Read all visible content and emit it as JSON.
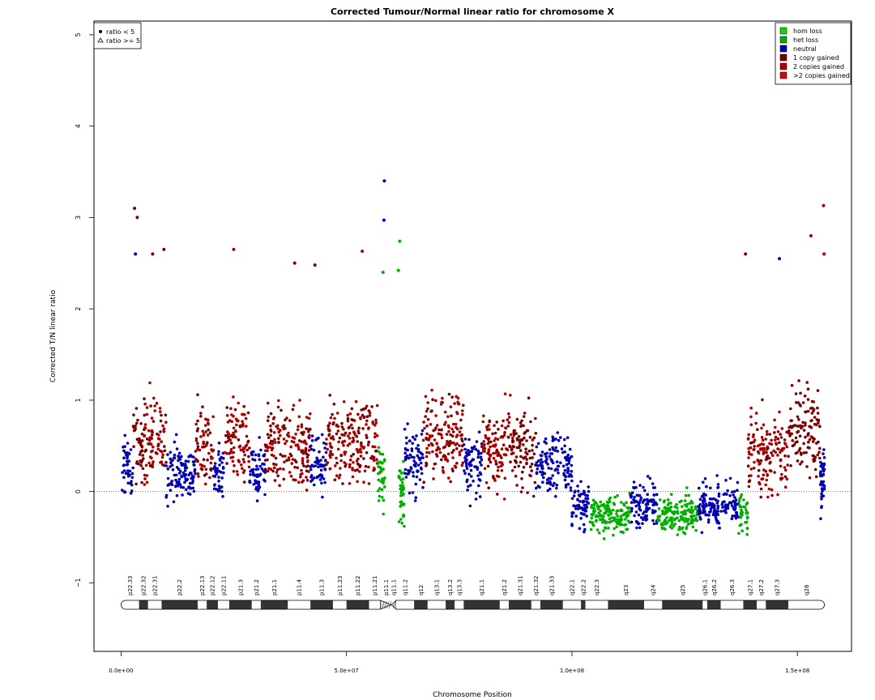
{
  "chart_data": {
    "type": "scatter",
    "title": "Corrected Tumour/Normal linear ratio for chromosome  X",
    "xlabel": "Chromosome Position",
    "ylabel": "Corrected T/N linear ratio",
    "xlim": [
      -6000000,
      162000000
    ],
    "ylim": [
      -1.75,
      5.15
    ],
    "x_ticks": [
      0,
      50000000,
      100000000,
      150000000
    ],
    "x_tick_labels": [
      "0.0e+00",
      "5.0e+07",
      "1.0e+08",
      "1.5e+08"
    ],
    "y_ticks": [
      -1,
      0,
      1,
      2,
      3,
      4,
      5
    ],
    "y_tick_labels": [
      "−1",
      "0",
      "1",
      "2",
      "3",
      "4",
      "5"
    ],
    "reference_line_y": 0,
    "legend_state": {
      "position": "top-right",
      "items": [
        {
          "label": "hom loss",
          "color": "#00e000"
        },
        {
          "label": "het loss",
          "color": "#00b000"
        },
        {
          "label": "neutral",
          "color": "#0000b0"
        },
        {
          "label": "1 copy gained",
          "color": "#7a0000"
        },
        {
          "label": "2 copies gained",
          "color": "#aa0000"
        },
        {
          "label": ">2 copies gained",
          "color": "#e00000"
        }
      ]
    },
    "legend_shape": {
      "position": "top-left",
      "items": [
        {
          "label": "ratio < 5",
          "shape": "dot"
        },
        {
          "label": "ratio >= 5",
          "shape": "triangle"
        }
      ]
    },
    "series_colors": {
      "neutral": "#0000b0",
      "gain1": "#7a0000",
      "gain2": "#aa0000",
      "loss": "#00b000"
    },
    "segments": [
      {
        "start": 0,
        "end": 2700000,
        "state": "neutral",
        "center": 0.25,
        "spread": 0.55
      },
      {
        "start": 2700000,
        "end": 5200000,
        "state": "gain1",
        "center": 0.55,
        "spread": 0.7
      },
      {
        "start": 5200000,
        "end": 10000000,
        "state": "gain2",
        "center": 0.55,
        "spread": 0.75
      },
      {
        "start": 10000000,
        "end": 16500000,
        "state": "neutral",
        "center": 0.2,
        "spread": 0.55
      },
      {
        "start": 16500000,
        "end": 20500000,
        "state": "gain2",
        "center": 0.5,
        "spread": 0.75
      },
      {
        "start": 20500000,
        "end": 23000000,
        "state": "neutral",
        "center": 0.2,
        "spread": 0.5
      },
      {
        "start": 23000000,
        "end": 28500000,
        "state": "gain2",
        "center": 0.5,
        "spread": 0.75
      },
      {
        "start": 28500000,
        "end": 32000000,
        "state": "neutral",
        "center": 0.2,
        "spread": 0.5
      },
      {
        "start": 32000000,
        "end": 42000000,
        "state": "gain2",
        "center": 0.5,
        "spread": 0.75
      },
      {
        "start": 42000000,
        "end": 45500000,
        "state": "neutral",
        "center": 0.3,
        "spread": 0.5
      },
      {
        "start": 45500000,
        "end": 57000000,
        "state": "gain2",
        "center": 0.55,
        "spread": 0.8
      },
      {
        "start": 57000000,
        "end": 58500000,
        "state": "loss",
        "center": 0.2,
        "spread": 0.6
      },
      {
        "start": 61500000,
        "end": 62800000,
        "state": "loss",
        "center": 0.0,
        "spread": 0.6
      },
      {
        "start": 62800000,
        "end": 67000000,
        "state": "neutral",
        "center": 0.35,
        "spread": 0.6
      },
      {
        "start": 67000000,
        "end": 76000000,
        "state": "gain2",
        "center": 0.65,
        "spread": 0.8
      },
      {
        "start": 76000000,
        "end": 80000000,
        "state": "neutral",
        "center": 0.3,
        "spread": 0.55
      },
      {
        "start": 80000000,
        "end": 87000000,
        "state": "gain2",
        "center": 0.45,
        "spread": 0.7
      },
      {
        "start": 87000000,
        "end": 92000000,
        "state": "gain1",
        "center": 0.45,
        "spread": 0.7
      },
      {
        "start": 92000000,
        "end": 100000000,
        "state": "neutral",
        "center": 0.3,
        "spread": 0.6
      },
      {
        "start": 100000000,
        "end": 104000000,
        "state": "neutral",
        "center": -0.15,
        "spread": 0.4
      },
      {
        "start": 104000000,
        "end": 113000000,
        "state": "loss",
        "center": -0.25,
        "spread": 0.35
      },
      {
        "start": 113000000,
        "end": 119000000,
        "state": "neutral",
        "center": -0.15,
        "spread": 0.4
      },
      {
        "start": 119000000,
        "end": 128000000,
        "state": "loss",
        "center": -0.25,
        "spread": 0.35
      },
      {
        "start": 128000000,
        "end": 137000000,
        "state": "neutral",
        "center": -0.15,
        "spread": 0.45
      },
      {
        "start": 137000000,
        "end": 139000000,
        "state": "loss",
        "center": -0.25,
        "spread": 0.35
      },
      {
        "start": 139000000,
        "end": 148000000,
        "state": "gain2",
        "center": 0.4,
        "spread": 0.7
      },
      {
        "start": 148000000,
        "end": 155000000,
        "state": "gain1",
        "center": 0.7,
        "spread": 0.8
      },
      {
        "start": 155000000,
        "end": 156000000,
        "state": "neutral",
        "center": 0.1,
        "spread": 0.6
      }
    ],
    "outliers": [
      {
        "x": 3000000,
        "y": 3.1,
        "state": "gain1"
      },
      {
        "x": 3600000,
        "y": 3.0,
        "state": "gain1"
      },
      {
        "x": 3200000,
        "y": 2.6,
        "state": "neutral"
      },
      {
        "x": 7000000,
        "y": 2.6,
        "state": "gain1"
      },
      {
        "x": 9500000,
        "y": 2.65,
        "state": "gain1"
      },
      {
        "x": 25000000,
        "y": 2.65,
        "state": "gain2"
      },
      {
        "x": 38500000,
        "y": 2.5,
        "state": "gain1"
      },
      {
        "x": 43000000,
        "y": 2.48,
        "state": "gain1"
      },
      {
        "x": 53500000,
        "y": 2.63,
        "state": "gain2"
      },
      {
        "x": 58400000,
        "y": 3.4,
        "state": "neutral"
      },
      {
        "x": 58300000,
        "y": 2.97,
        "state": "neutral"
      },
      {
        "x": 58100000,
        "y": 2.4,
        "state": "loss"
      },
      {
        "x": 61800000,
        "y": 2.74,
        "state": "loss"
      },
      {
        "x": 61500000,
        "y": 2.42,
        "state": "loss"
      },
      {
        "x": 138500000,
        "y": 2.6,
        "state": "gain1"
      },
      {
        "x": 146000000,
        "y": 2.55,
        "state": "neutral"
      },
      {
        "x": 153000000,
        "y": 2.8,
        "state": "gain2"
      },
      {
        "x": 155800000,
        "y": 3.13,
        "state": "gain2"
      },
      {
        "x": 155900000,
        "y": 2.6,
        "state": "gain2"
      }
    ],
    "ideogram": {
      "bands": [
        {
          "name": "p22.33",
          "start": 0,
          "end": 4000000,
          "stain": "gneg"
        },
        {
          "name": "p22.32",
          "start": 4000000,
          "end": 6000000,
          "stain": "gpos"
        },
        {
          "name": "p22.31",
          "start": 6000000,
          "end": 9000000,
          "stain": "gneg"
        },
        {
          "name": "p22.2",
          "start": 9000000,
          "end": 17000000,
          "stain": "gpos"
        },
        {
          "name": "p22.13",
          "start": 17000000,
          "end": 19000000,
          "stain": "gneg"
        },
        {
          "name": "p22.12",
          "start": 19000000,
          "end": 21500000,
          "stain": "gpos"
        },
        {
          "name": "p22.11",
          "start": 21500000,
          "end": 24000000,
          "stain": "gneg"
        },
        {
          "name": "p21.3",
          "start": 24000000,
          "end": 29000000,
          "stain": "gpos"
        },
        {
          "name": "p21.2",
          "start": 29000000,
          "end": 31000000,
          "stain": "gneg"
        },
        {
          "name": "p21.1",
          "start": 31000000,
          "end": 37000000,
          "stain": "gpos"
        },
        {
          "name": "p11.4",
          "start": 37000000,
          "end": 42000000,
          "stain": "gneg"
        },
        {
          "name": "p11.3",
          "start": 42000000,
          "end": 47000000,
          "stain": "gpos"
        },
        {
          "name": "p11.23",
          "start": 47000000,
          "end": 50000000,
          "stain": "gneg"
        },
        {
          "name": "p11.22",
          "start": 50000000,
          "end": 55000000,
          "stain": "gpos"
        },
        {
          "name": "p11.21",
          "start": 55000000,
          "end": 57500000,
          "stain": "gneg"
        },
        {
          "name": "p11.1",
          "start": 57500000,
          "end": 60000000,
          "stain": "acen"
        },
        {
          "name": "q11.1",
          "start": 60000000,
          "end": 61000000,
          "stain": "acen"
        },
        {
          "name": "q11.2",
          "start": 61000000,
          "end": 65000000,
          "stain": "gneg"
        },
        {
          "name": "q12",
          "start": 65000000,
          "end": 68000000,
          "stain": "gpos"
        },
        {
          "name": "q13.1",
          "start": 68000000,
          "end": 72000000,
          "stain": "gneg"
        },
        {
          "name": "q13.2",
          "start": 72000000,
          "end": 74000000,
          "stain": "gpos"
        },
        {
          "name": "q13.3",
          "start": 74000000,
          "end": 76000000,
          "stain": "gneg"
        },
        {
          "name": "q21.1",
          "start": 76000000,
          "end": 84000000,
          "stain": "gpos"
        },
        {
          "name": "q21.2",
          "start": 84000000,
          "end": 86000000,
          "stain": "gneg"
        },
        {
          "name": "q21.31",
          "start": 86000000,
          "end": 91000000,
          "stain": "gpos"
        },
        {
          "name": "q21.32",
          "start": 91000000,
          "end": 93000000,
          "stain": "gneg"
        },
        {
          "name": "q21.33",
          "start": 93000000,
          "end": 98000000,
          "stain": "gpos"
        },
        {
          "name": "q22.1",
          "start": 98000000,
          "end": 102000000,
          "stain": "gneg"
        },
        {
          "name": "q22.2",
          "start": 102000000,
          "end": 103000000,
          "stain": "gpos"
        },
        {
          "name": "q22.3",
          "start": 103000000,
          "end": 108000000,
          "stain": "gneg"
        },
        {
          "name": "q23",
          "start": 108000000,
          "end": 116000000,
          "stain": "gpos"
        },
        {
          "name": "q24",
          "start": 116000000,
          "end": 120000000,
          "stain": "gneg"
        },
        {
          "name": "q25",
          "start": 120000000,
          "end": 129000000,
          "stain": "gpos"
        },
        {
          "name": "q26.1",
          "start": 129000000,
          "end": 130000000,
          "stain": "gneg"
        },
        {
          "name": "q26.2",
          "start": 130000000,
          "end": 133000000,
          "stain": "gpos"
        },
        {
          "name": "q26.3",
          "start": 133000000,
          "end": 138000000,
          "stain": "gneg"
        },
        {
          "name": "q27.1",
          "start": 138000000,
          "end": 141000000,
          "stain": "gpos"
        },
        {
          "name": "q27.2",
          "start": 141000000,
          "end": 143000000,
          "stain": "gneg"
        },
        {
          "name": "q27.3",
          "start": 143000000,
          "end": 148000000,
          "stain": "gpos"
        },
        {
          "name": "q28",
          "start": 148000000,
          "end": 156000000,
          "stain": "gneg"
        }
      ]
    }
  }
}
